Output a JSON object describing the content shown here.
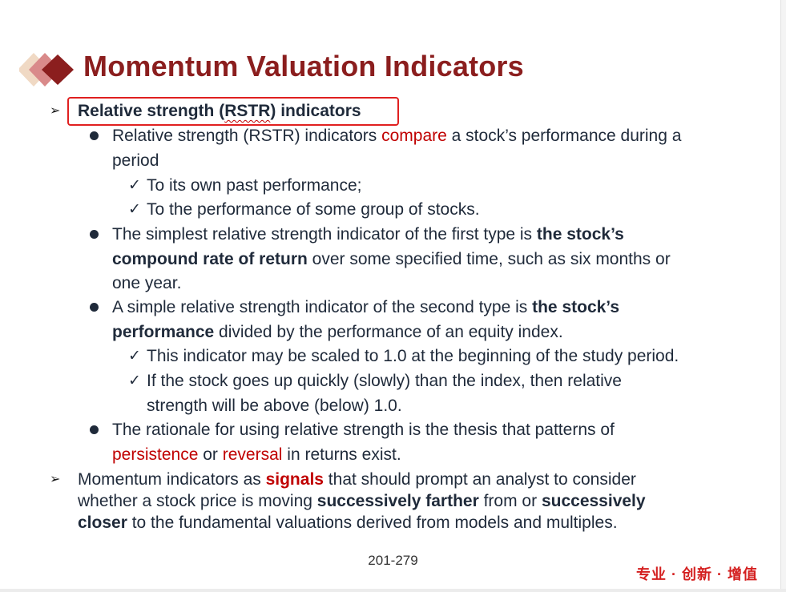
{
  "slide": {
    "title": "Momentum Valuation Indicators",
    "heading": {
      "pre": "Relative strength (",
      "abbr": "RSTR",
      "post": ") indicators"
    },
    "b1": {
      "l1_pre": "Relative strength (RSTR) indicators ",
      "l1_red": "compare",
      "l1_post": " a stock’s performance during a",
      "l2": "period",
      "c1": "To its own past performance;",
      "c2": "To the performance of some group of stocks."
    },
    "b2": {
      "l1_pre": "The simplest relative strength indicator of the first type is ",
      "l1_bold": "the stock’s",
      "l2_bold": "compound rate of return",
      "l2_post": " over some specified time, such as six months or",
      "l3": "one year."
    },
    "b3": {
      "l1_pre": "A simple relative strength indicator of the second type is ",
      "l1_bold": "the stock’s",
      "l2_bold": "performance",
      "l2_post": " divided by the performance of an equity index.",
      "c1": "This indicator may be scaled to 1.0 at the beginning of the study period.",
      "c2_l1": "If the stock goes up quickly (slowly) than the index, then relative",
      "c2_l2": "strength will be above (below) 1.0."
    },
    "b4": {
      "l1": "The rationale for using relative strength is the thesis that patterns of",
      "l2_red1": "persistence",
      "l2_mid": " or ",
      "l2_red2": "reversal",
      "l2_post": " in returns exist."
    },
    "point2": {
      "l1_pre": "Momentum indicators as ",
      "l1_red_bold": "signals",
      "l1_post": " that should prompt an analyst to consider",
      "l2_pre": "whether a stock price is moving ",
      "l2_bold1": "successively farther",
      "l2_mid": " from or ",
      "l2_bold2": "successively",
      "l3_bold": "closer",
      "l3_post": " to the fundamental valuations derived from models and multiples."
    },
    "page_number": "201-279",
    "footer_tag": "专业 · 创新 · 增值",
    "colors": {
      "title": "#8b1e1e",
      "accent_red": "#c00000",
      "highlight_box": "#e02020",
      "text": "#1f2a3a"
    },
    "icons": {
      "logo": "diamond-logo-icon",
      "bullet_l1": "arrowhead-bullet-icon",
      "bullet_l2": "dot-bullet-icon",
      "bullet_l3": "check-icon"
    }
  }
}
